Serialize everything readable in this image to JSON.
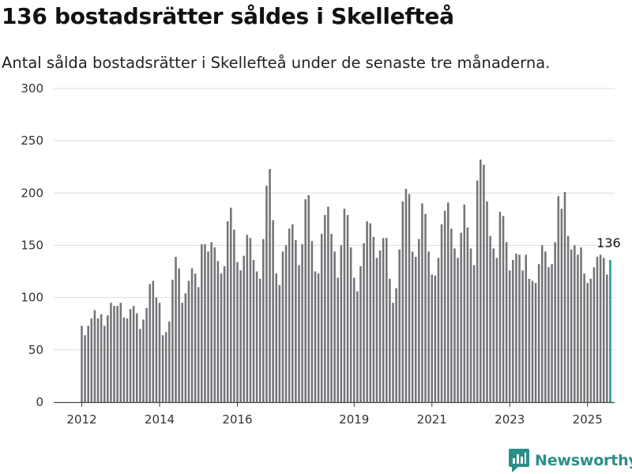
{
  "title": "136 bostadsrätter såldes i Skellefteå",
  "subtitle": "Antal sålda bostadsrätter i Skellefteå under de senaste tre månaderna.",
  "brand": {
    "name": "Newsworthy",
    "icon": "newsworthy-logo-icon"
  },
  "colors": {
    "bar": "#747378",
    "highlight": "#1e9e8f",
    "grid": "#dddddd",
    "brand": "#2a8f86"
  },
  "chart_data": {
    "type": "bar",
    "title": "136 bostadsrätter såldes i Skellefteå",
    "subtitle": "Antal sålda bostadsrätter i Skellefteå under de senaste tre månaderna.",
    "xlabel": "",
    "ylabel": "",
    "ylim": [
      0,
      300
    ],
    "y_ticks": [
      0,
      50,
      100,
      150,
      200,
      250,
      300
    ],
    "x_ticks": [
      "2012",
      "2014",
      "2016",
      "2019",
      "2021",
      "2023",
      "2025"
    ],
    "x_tick_positions": [
      2012,
      2014,
      2016,
      2019,
      2021,
      2023,
      2025
    ],
    "grid": "horizontal",
    "x_start": 2012,
    "x_step": 0.08333,
    "values": [
      73,
      64,
      73,
      80,
      88,
      80,
      84,
      73,
      83,
      95,
      92,
      92,
      95,
      81,
      80,
      89,
      92,
      85,
      70,
      79,
      90,
      113,
      116,
      100,
      95,
      64,
      67,
      77,
      117,
      139,
      128,
      95,
      104,
      116,
      128,
      123,
      110,
      151,
      151,
      144,
      153,
      148,
      135,
      123,
      130,
      173,
      186,
      165,
      134,
      126,
      140,
      160,
      157,
      136,
      125,
      118,
      156,
      207,
      223,
      174,
      123,
      112,
      144,
      150,
      166,
      170,
      155,
      131,
      151,
      194,
      198,
      154,
      125,
      123,
      161,
      179,
      187,
      161,
      144,
      119,
      150,
      185,
      179,
      148,
      119,
      106,
      130,
      152,
      173,
      171,
      158,
      138,
      145,
      157,
      157,
      118,
      95,
      109,
      146,
      192,
      204,
      199,
      144,
      139,
      156,
      190,
      180,
      144,
      122,
      121,
      138,
      170,
      183,
      191,
      166,
      147,
      138,
      162,
      189,
      167,
      147,
      131,
      212,
      232,
      227,
      192,
      159,
      147,
      138,
      182,
      178,
      153,
      126,
      136,
      142,
      141,
      126,
      141,
      118,
      116,
      114,
      132,
      150,
      144,
      129,
      132,
      153,
      197,
      185,
      201,
      159,
      146,
      150,
      141,
      148,
      123,
      114,
      118,
      129,
      139,
      141,
      138,
      122,
      136
    ],
    "highlight_last": true,
    "annotations": [
      {
        "label": "136"
      }
    ]
  }
}
